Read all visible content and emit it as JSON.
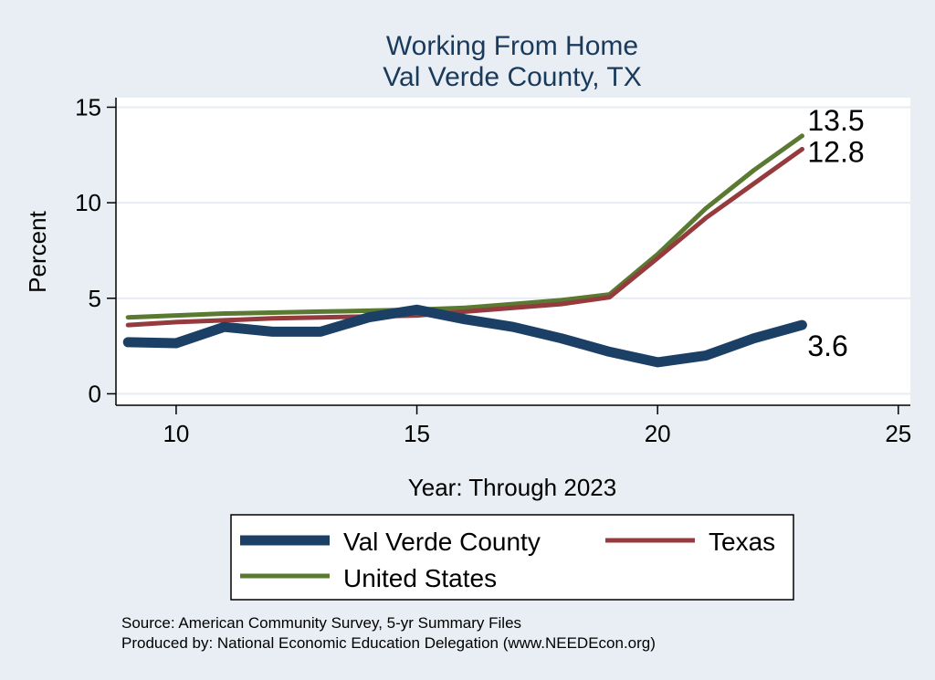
{
  "chart_data": {
    "type": "line",
    "title": [
      "Working From Home",
      "Val Verde County, TX"
    ],
    "xlabel": "Year: Through 2023",
    "ylabel": "Percent",
    "xlim": [
      8.75,
      25.25
    ],
    "ylim": [
      -0.6,
      15.5
    ],
    "xticks": [
      10,
      15,
      20,
      25
    ],
    "yticks": [
      0,
      5,
      10,
      15
    ],
    "grid": true,
    "x": [
      9,
      10,
      11,
      12,
      13,
      14,
      15,
      16,
      17,
      18,
      19,
      20,
      21,
      22,
      23
    ],
    "series": [
      {
        "name": "Val Verde County",
        "color": "#1c3f66",
        "width": 11,
        "values": [
          2.7,
          2.65,
          3.5,
          3.25,
          3.25,
          4.0,
          4.4,
          3.9,
          3.5,
          2.9,
          2.2,
          1.65,
          2.0,
          2.9,
          3.6
        ],
        "end_label": "3.6"
      },
      {
        "name": "Texas",
        "color": "#953b3e",
        "width": 5,
        "values": [
          3.6,
          3.75,
          3.85,
          3.95,
          4.0,
          4.05,
          4.1,
          4.3,
          4.5,
          4.7,
          5.05,
          7.1,
          9.2,
          11.0,
          12.8
        ],
        "end_label": "12.8"
      },
      {
        "name": "United States",
        "color": "#5a7a32",
        "width": 5,
        "values": [
          4.0,
          4.1,
          4.2,
          4.25,
          4.3,
          4.35,
          4.4,
          4.5,
          4.7,
          4.9,
          5.2,
          7.3,
          9.7,
          11.7,
          13.5
        ],
        "end_label": "13.5"
      }
    ],
    "legend": {
      "position": "bottom",
      "entries": [
        "Val Verde County",
        "Texas",
        "United States"
      ]
    },
    "notes": [
      "Source: American Community Survey, 5-yr Summary Files",
      "Produced by: National Economic Education Delegation (www.NEEDEcon.org)"
    ]
  }
}
